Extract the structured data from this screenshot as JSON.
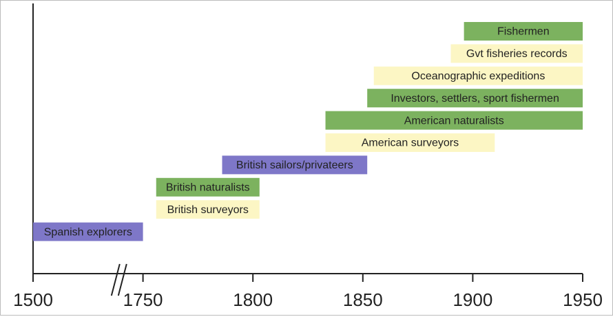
{
  "chart_data": {
    "type": "timeline",
    "xticks": [
      1500,
      1750,
      1800,
      1850,
      1900,
      1950
    ],
    "xlim": [
      1500,
      1950
    ],
    "axis_break": true,
    "tasks": [
      {
        "label": "Fishermen",
        "start": 1896,
        "end": 1950,
        "color": "#7cb25f"
      },
      {
        "label": "Gvt fisheries records",
        "start": 1890,
        "end": 1950,
        "color": "#fcf6c4"
      },
      {
        "label": "Oceanographic expeditions",
        "start": 1855,
        "end": 1950,
        "color": "#fcf6c4"
      },
      {
        "label": "Investors, settlers, sport fishermen",
        "start": 1852,
        "end": 1950,
        "color": "#7cb25f"
      },
      {
        "label": "American naturalists",
        "start": 1833,
        "end": 1950,
        "color": "#7cb25f"
      },
      {
        "label": "American surveyors",
        "start": 1833,
        "end": 1910,
        "color": "#fcf6c4"
      },
      {
        "label": "British sailors/privateers",
        "start": 1786,
        "end": 1852,
        "color": "#7e77c8"
      },
      {
        "label": "British naturalists",
        "start": 1756,
        "end": 1803,
        "color": "#7cb25f"
      },
      {
        "label": "British surveyors",
        "start": 1756,
        "end": 1803,
        "color": "#fcf6c4"
      },
      {
        "label": "Spanish explorers",
        "start": 1500,
        "end": 1750,
        "color": "#7e77c8"
      }
    ]
  }
}
